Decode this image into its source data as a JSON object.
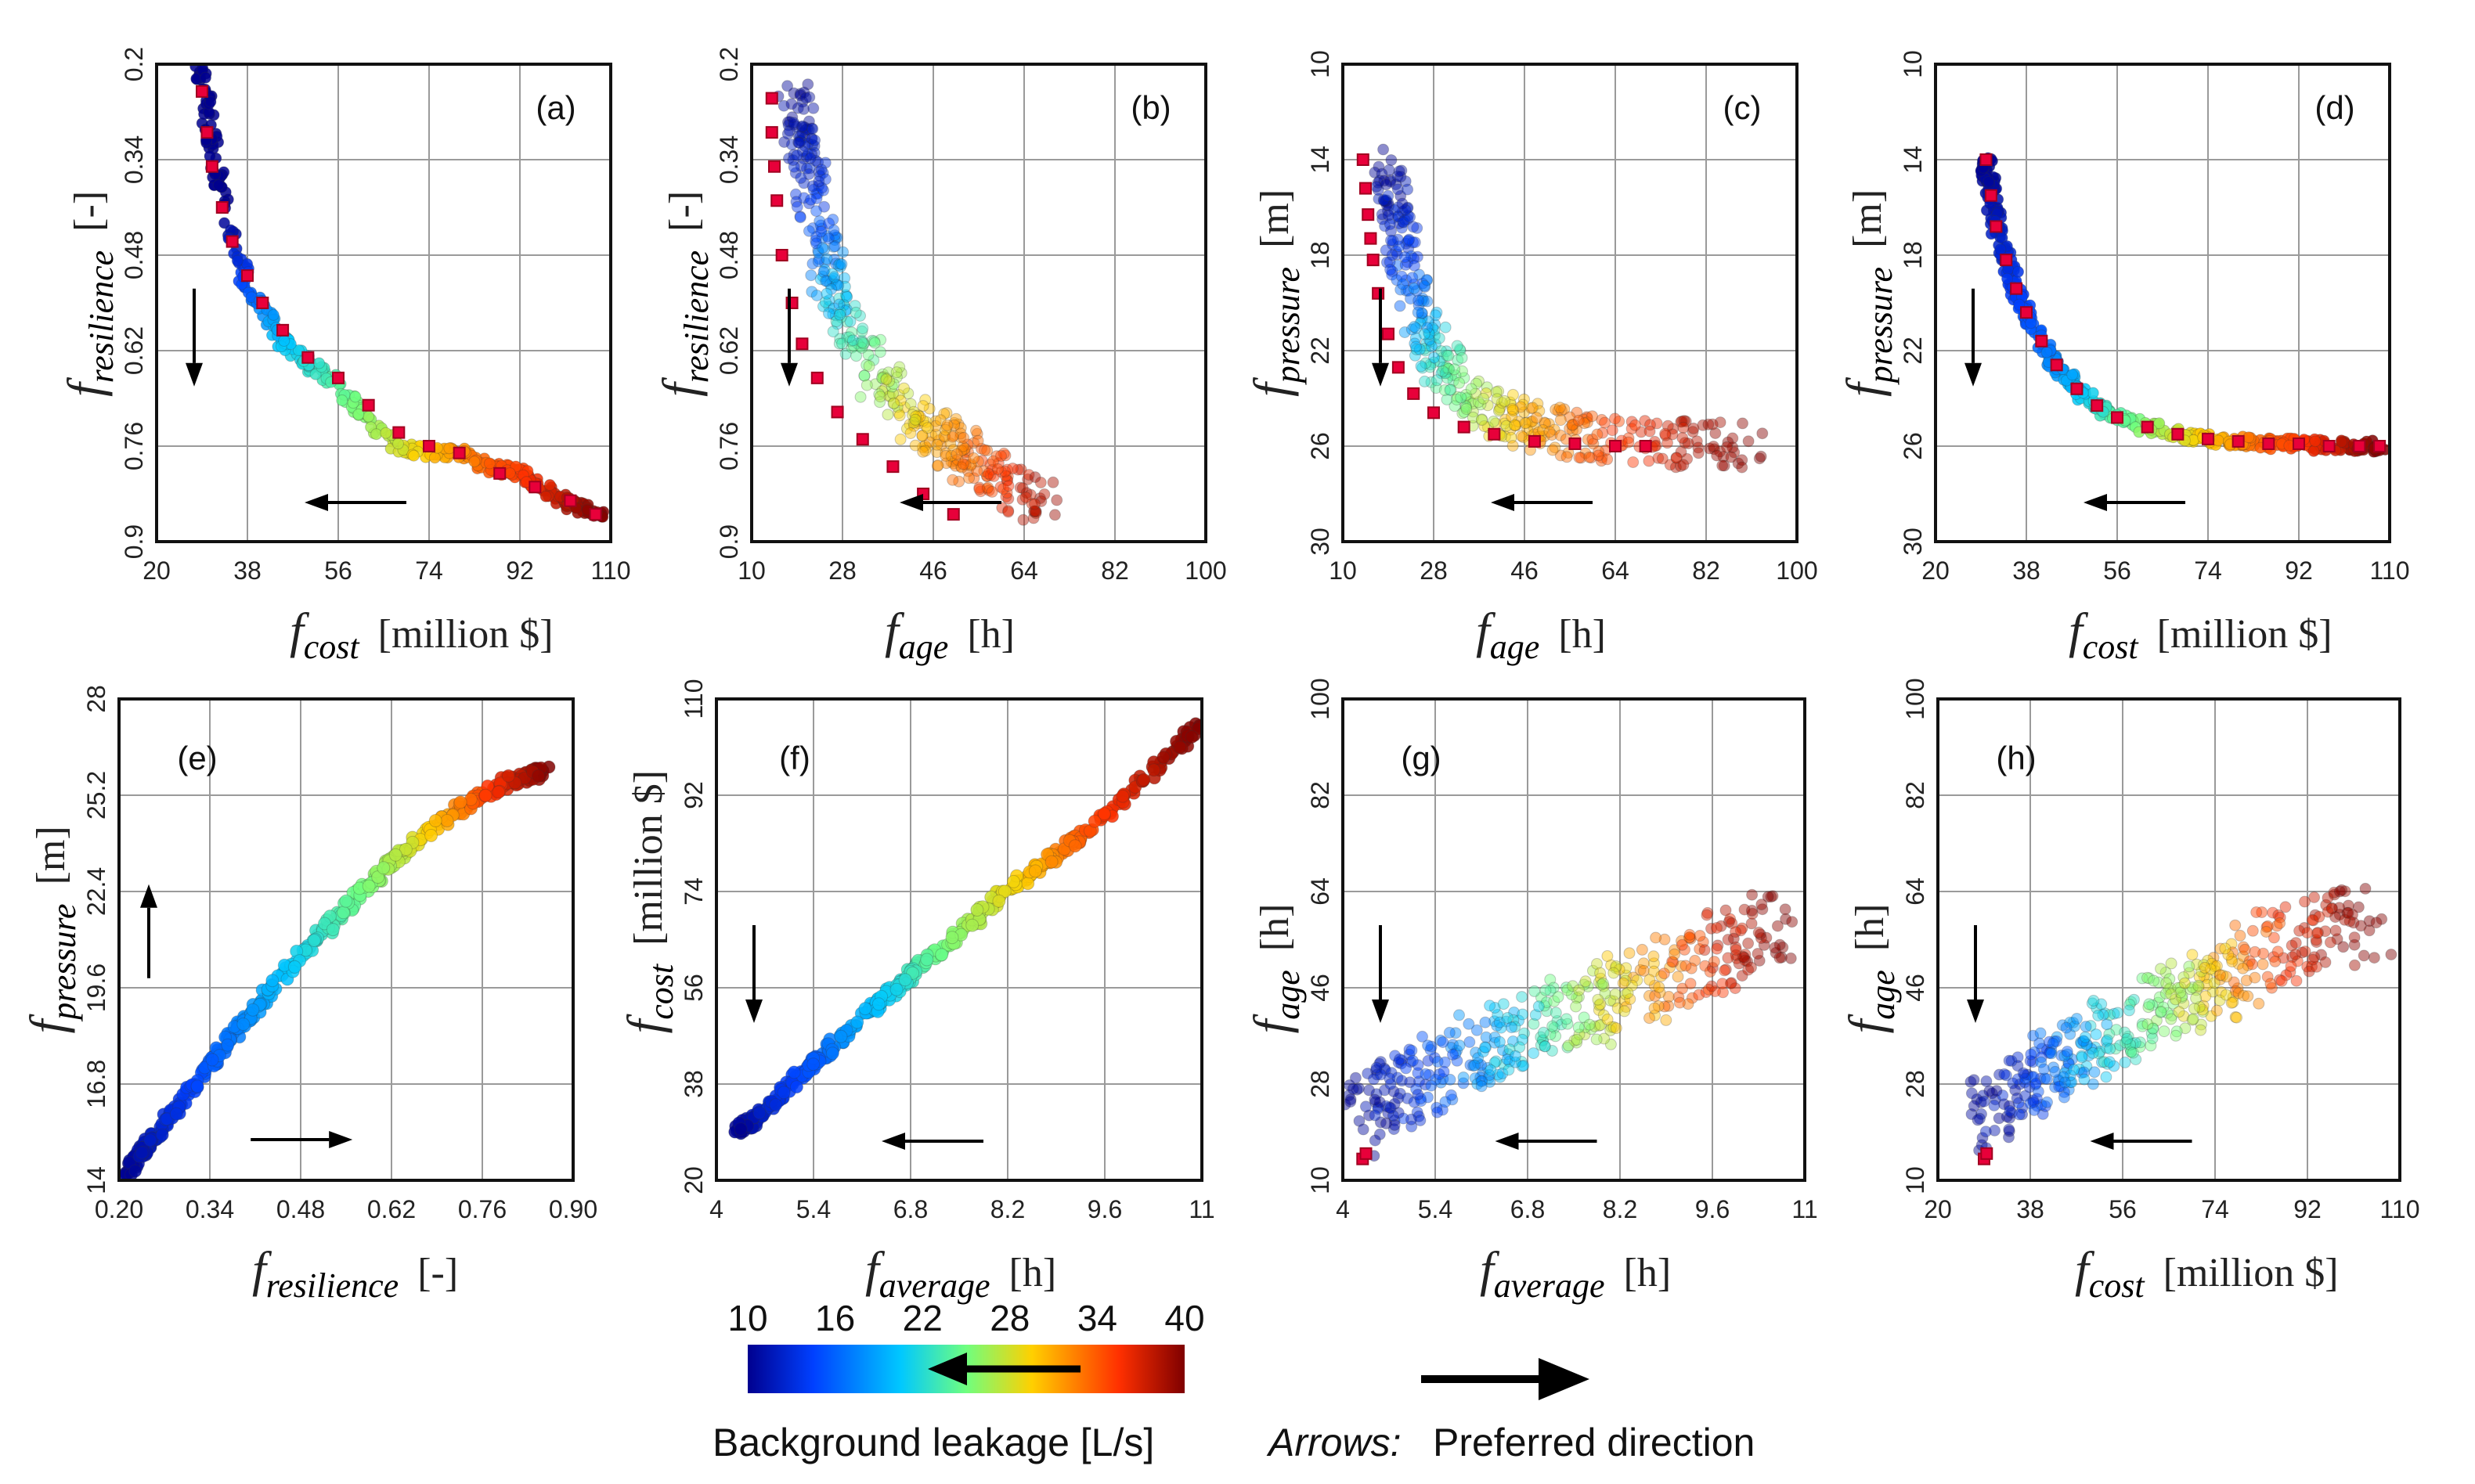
{
  "chart_data": [
    {
      "type": "scatter",
      "panel": "(a)",
      "xlabel_main": "f",
      "xlabel_sub": "cost",
      "xunit": "[million $]",
      "ylabel_main": "f",
      "ylabel_sub": "resilience",
      "yunit": "[-]",
      "xlim": [
        20,
        110
      ],
      "ylim": [
        0.2,
        0.9
      ],
      "y_inverted": true,
      "xticks": [
        "20",
        "38",
        "56",
        "74",
        "92",
        "110"
      ],
      "yticks": [
        "0.2",
        "0.34",
        "0.48",
        "0.62",
        "0.76",
        "0.9"
      ],
      "curve": {
        "x": [
          29,
          31,
          34,
          38,
          44,
          50,
          56,
          62,
          68,
          74,
          80,
          86,
          92,
          98,
          104,
          108
        ],
        "y": [
          0.21,
          0.32,
          0.43,
          0.52,
          0.6,
          0.64,
          0.67,
          0.72,
          0.76,
          0.77,
          0.77,
          0.79,
          0.8,
          0.83,
          0.85,
          0.86
        ],
        "color": [
          10,
          10,
          10,
          15,
          20,
          22,
          24,
          26,
          28,
          30,
          32,
          34,
          35,
          37,
          39,
          40
        ]
      },
      "pareto": {
        "x": [
          29,
          30,
          31,
          33,
          35,
          38,
          41,
          45,
          50,
          56,
          62,
          68,
          74,
          80,
          88,
          95,
          102,
          107
        ],
        "y": [
          0.24,
          0.3,
          0.35,
          0.41,
          0.46,
          0.51,
          0.55,
          0.59,
          0.63,
          0.66,
          0.7,
          0.74,
          0.76,
          0.77,
          0.8,
          0.82,
          0.84,
          0.86
        ]
      },
      "arrows": {
        "down": true,
        "left": true
      }
    },
    {
      "type": "scatter",
      "panel": "(b)",
      "xlabel_main": "f",
      "xlabel_sub": "age",
      "xunit": "[h]",
      "ylabel_main": "f",
      "ylabel_sub": "resilience",
      "yunit": "[-]",
      "xlim": [
        10,
        100
      ],
      "ylim": [
        0.2,
        0.9
      ],
      "y_inverted": true,
      "xticks": [
        "10",
        "28",
        "46",
        "64",
        "82",
        "100"
      ],
      "yticks": [
        "0.2",
        "0.34",
        "0.48",
        "0.62",
        "0.76",
        "0.9"
      ],
      "curve": {
        "x": [
          15,
          17,
          19,
          21,
          24,
          28,
          34,
          40,
          46,
          52,
          58,
          66
        ],
        "y": [
          0.25,
          0.32,
          0.4,
          0.48,
          0.55,
          0.62,
          0.68,
          0.72,
          0.76,
          0.79,
          0.82,
          0.84
        ],
        "color": [
          10,
          12,
          14,
          17,
          21,
          24,
          27,
          30,
          32,
          34,
          36,
          39
        ]
      },
      "pareto": {
        "x": [
          14,
          14,
          14.5,
          15,
          16,
          18,
          20,
          23,
          27,
          32,
          38,
          44,
          50
        ],
        "y": [
          0.25,
          0.3,
          0.35,
          0.4,
          0.48,
          0.55,
          0.61,
          0.66,
          0.71,
          0.75,
          0.79,
          0.83,
          0.86
        ]
      },
      "arrows": {
        "down": true,
        "left": true
      }
    },
    {
      "type": "scatter",
      "panel": "(c)",
      "xlabel_main": "f",
      "xlabel_sub": "age",
      "xunit": "[h]",
      "ylabel_main": "f",
      "ylabel_sub": "pressure",
      "yunit": "[m]",
      "xlim": [
        10,
        100
      ],
      "ylim": [
        10,
        30
      ],
      "y_inverted": true,
      "xticks": [
        "10",
        "28",
        "46",
        "64",
        "82",
        "100"
      ],
      "yticks": [
        "10",
        "14",
        "18",
        "22",
        "26",
        "30"
      ],
      "curve": {
        "x": [
          16,
          17,
          19,
          21,
          24,
          28,
          34,
          40,
          48,
          56,
          66,
          76,
          90
        ],
        "y": [
          14.5,
          16,
          17.8,
          19.8,
          21.8,
          23.2,
          24.3,
          24.9,
          25.3,
          25.6,
          25.8,
          25.9,
          26
        ],
        "color": [
          10,
          12,
          14,
          17,
          21,
          24,
          27,
          30,
          32,
          34,
          36,
          38,
          40
        ]
      },
      "pareto": {
        "x": [
          14,
          14.5,
          15,
          15.5,
          16,
          17,
          19,
          21,
          24,
          28,
          34,
          40,
          48,
          56,
          64,
          70
        ],
        "y": [
          14,
          15.2,
          16.3,
          17.3,
          18.2,
          19.6,
          21.3,
          22.7,
          23.8,
          24.6,
          25.2,
          25.5,
          25.8,
          25.9,
          26,
          26
        ]
      },
      "arrows": {
        "down": true,
        "left": true
      }
    },
    {
      "type": "scatter",
      "panel": "(d)",
      "xlabel_main": "f",
      "xlabel_sub": "cost",
      "xunit": "[million $]",
      "ylabel_main": "f",
      "ylabel_sub": "pressure",
      "yunit": "[m]",
      "xlim": [
        20,
        110
      ],
      "ylim": [
        10,
        30
      ],
      "y_inverted": true,
      "xticks": [
        "20",
        "38",
        "56",
        "74",
        "92",
        "110"
      ],
      "yticks": [
        "10",
        "14",
        "18",
        "22",
        "26",
        "30"
      ],
      "curve": {
        "x": [
          30,
          31,
          32,
          34,
          36,
          38,
          41,
          44,
          48,
          52,
          56,
          62,
          68,
          74,
          80,
          86,
          92,
          98,
          104,
          108
        ],
        "y": [
          14,
          15.5,
          16.8,
          18.2,
          19.4,
          20.4,
          21.6,
          22.6,
          23.6,
          24.3,
          24.8,
          25.2,
          25.5,
          25.7,
          25.8,
          25.9,
          25.9,
          26,
          26,
          26
        ],
        "color": [
          10,
          11,
          12,
          13,
          14,
          15,
          16,
          18,
          20,
          22,
          24,
          26,
          28,
          30,
          32,
          34,
          35,
          37,
          39,
          40
        ]
      },
      "pareto": {
        "x": [
          30,
          31,
          32,
          34,
          36,
          38,
          41,
          44,
          48,
          52,
          56,
          62,
          68,
          74,
          80,
          86,
          92,
          98,
          104,
          108
        ],
        "y": [
          14,
          15.5,
          16.8,
          18.2,
          19.4,
          20.4,
          21.6,
          22.6,
          23.6,
          24.3,
          24.8,
          25.2,
          25.5,
          25.7,
          25.8,
          25.9,
          25.9,
          26,
          26,
          26
        ]
      },
      "arrows": {
        "down": true,
        "left": true
      }
    },
    {
      "type": "scatter",
      "panel": "(e)",
      "xlabel_main": "f",
      "xlabel_sub": "resilience",
      "xunit": "[-]",
      "ylabel_main": "f",
      "ylabel_sub": "pressure",
      "yunit": "[m]",
      "xlim": [
        0.2,
        0.9
      ],
      "ylim": [
        14,
        28
      ],
      "y_inverted": false,
      "xticks": [
        "0.20",
        "0.34",
        "0.48",
        "0.62",
        "0.76",
        "0.90"
      ],
      "yticks": [
        "14",
        "16.8",
        "19.6",
        "22.4",
        "25.2",
        "28"
      ],
      "curve": {
        "x": [
          0.21,
          0.25,
          0.3,
          0.35,
          0.4,
          0.45,
          0.5,
          0.55,
          0.6,
          0.65,
          0.7,
          0.75,
          0.8,
          0.86
        ],
        "y": [
          14.2,
          15.2,
          16.4,
          17.6,
          18.8,
          19.9,
          20.9,
          21.9,
          22.9,
          23.7,
          24.5,
          25.1,
          25.6,
          25.9
        ],
        "color": [
          10,
          12,
          14,
          16,
          18,
          20,
          22,
          24,
          26,
          28,
          31,
          34,
          37,
          40
        ]
      },
      "arrows": {
        "up": true,
        "right": true
      }
    },
    {
      "type": "scatter",
      "panel": "(f)",
      "xlabel_main": "f",
      "xlabel_sub": "average",
      "xunit": "[h]",
      "ylabel_main": "f",
      "ylabel_sub": "cost",
      "yunit": "[million $]",
      "xlim": [
        4,
        11
      ],
      "ylim": [
        20,
        110
      ],
      "y_inverted": false,
      "xticks": [
        "4",
        "5.4",
        "6.8",
        "8.2",
        "9.6",
        "11"
      ],
      "yticks": [
        "20",
        "38",
        "56",
        "74",
        "92",
        "110"
      ],
      "curve": {
        "x": [
          4.3,
          4.6,
          5,
          5.5,
          6,
          6.5,
          7,
          7.5,
          8,
          8.5,
          9,
          9.5,
          10,
          10.5,
          11
        ],
        "y": [
          29,
          32,
          37,
          43,
          49,
          55,
          61,
          66,
          72,
          77,
          82,
          87,
          93,
          99,
          106
        ],
        "color": [
          10,
          12,
          14,
          16,
          19,
          21,
          24,
          26,
          28,
          30,
          33,
          35,
          37,
          39,
          40
        ]
      },
      "arrows": {
        "down": true,
        "left": true
      }
    },
    {
      "type": "scatter",
      "panel": "(g)",
      "xlabel_main": "f",
      "xlabel_sub": "average",
      "xunit": "[h]",
      "ylabel_main": "f",
      "ylabel_sub": "age",
      "yunit": "[h]",
      "xlim": [
        4,
        11
      ],
      "ylim": [
        10,
        100
      ],
      "y_inverted": false,
      "xticks": [
        "4",
        "5.4",
        "6.8",
        "8.2",
        "9.6",
        "11"
      ],
      "yticks": [
        "10",
        "28",
        "46",
        "64",
        "82",
        "100"
      ],
      "curve": {
        "x": [
          4.3,
          4.7,
          5.2,
          5.8,
          6.4,
          7,
          7.6,
          8.2,
          8.8,
          9.4,
          10,
          10.6
        ],
        "y": [
          20,
          24,
          27,
          31,
          34,
          37,
          40,
          43,
          46,
          50,
          53,
          56
        ],
        "color": [
          10,
          12,
          14,
          17,
          20,
          23,
          26,
          29,
          32,
          35,
          38,
          40
        ]
      },
      "pareto": {
        "x": [
          4.3,
          4.35
        ],
        "y": [
          14,
          15
        ]
      },
      "arrows": {
        "down": true,
        "left": true
      }
    },
    {
      "type": "scatter",
      "panel": "(h)",
      "xlabel_main": "f",
      "xlabel_sub": "cost",
      "xunit": "[million $]",
      "ylabel_main": "f",
      "ylabel_sub": "age",
      "yunit": "[h]",
      "xlim": [
        20,
        110
      ],
      "ylim": [
        10,
        100
      ],
      "y_inverted": false,
      "xticks": [
        "20",
        "38",
        "56",
        "74",
        "92",
        "110"
      ],
      "yticks": [
        "10",
        "28",
        "46",
        "64",
        "82",
        "100"
      ],
      "curve": {
        "x": [
          29,
          33,
          38,
          44,
          50,
          56,
          62,
          68,
          74,
          80,
          86,
          92,
          98,
          104
        ],
        "y": [
          20,
          24,
          27,
          31,
          34,
          37,
          40,
          43,
          46,
          49,
          52,
          54,
          56,
          58
        ],
        "color": [
          10,
          12,
          14,
          17,
          20,
          23,
          25,
          27,
          30,
          33,
          35,
          37,
          39,
          40
        ]
      },
      "pareto": {
        "x": [
          29,
          29.5
        ],
        "y": [
          14,
          15
        ]
      },
      "arrows": {
        "down": true,
        "left": true
      }
    }
  ],
  "colorbar": {
    "ticks": [
      "10",
      "16",
      "22",
      "28",
      "34",
      "40"
    ],
    "label": "Background leakage [L/s]",
    "colors": [
      "#00008f",
      "#0040ff",
      "#00c8ff",
      "#6fff7f",
      "#ffd000",
      "#ff3000",
      "#7f0000"
    ]
  },
  "legend": {
    "arrows_label": "Arrows:",
    "preferred_direction": "Preferred direction"
  }
}
